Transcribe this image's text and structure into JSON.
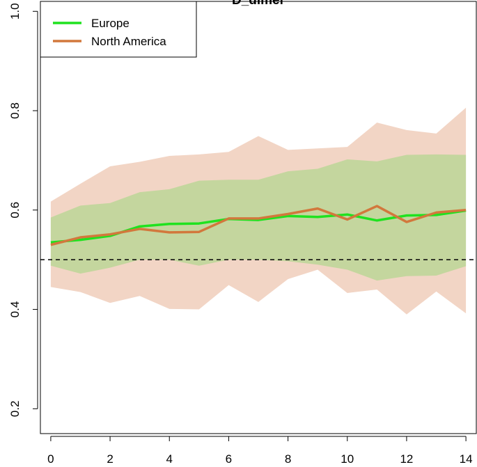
{
  "chart_data": {
    "type": "line",
    "title": "D_dimer",
    "xlabel": "",
    "ylabel": "",
    "xlim": [
      -0.35,
      14.35
    ],
    "ylim": [
      0.15,
      1.02
    ],
    "x_ticks": [
      0,
      2,
      4,
      6,
      8,
      10,
      12,
      14
    ],
    "y_ticks": [
      0.2,
      0.4,
      0.6,
      0.8,
      1.0
    ],
    "x_tick_labels": [
      "0",
      "2",
      "4",
      "6",
      "8",
      "10",
      "12",
      "14"
    ],
    "y_tick_labels": [
      "0.2",
      "0.4",
      "0.6",
      "0.8",
      "1.0"
    ],
    "reference_line": {
      "y": 0.5,
      "style": "dashed",
      "color": "#000000"
    },
    "x": [
      0,
      1,
      2,
      3,
      4,
      5,
      6,
      7,
      8,
      9,
      10,
      11,
      12,
      13,
      14
    ],
    "series": [
      {
        "name": "Europe",
        "color": "#1fe21f",
        "band_color": "#bcd696",
        "values": [
          0.535,
          0.54,
          0.548,
          0.567,
          0.572,
          0.573,
          0.582,
          0.58,
          0.588,
          0.586,
          0.591,
          0.579,
          0.589,
          0.59,
          0.599
        ],
        "lower": [
          0.488,
          0.472,
          0.484,
          0.5,
          0.5,
          0.488,
          0.5,
          0.5,
          0.497,
          0.49,
          0.48,
          0.458,
          0.467,
          0.468,
          0.487
        ],
        "upper": [
          0.585,
          0.609,
          0.614,
          0.636,
          0.642,
          0.659,
          0.661,
          0.661,
          0.678,
          0.683,
          0.702,
          0.698,
          0.711,
          0.712,
          0.711
        ]
      },
      {
        "name": "North America",
        "color": "#d2783c",
        "band_color": "#f2d5c5",
        "values": [
          0.53,
          0.545,
          0.551,
          0.562,
          0.555,
          0.556,
          0.583,
          0.583,
          0.592,
          0.603,
          0.581,
          0.608,
          0.576,
          0.595,
          0.6
        ],
        "lower": [
          0.445,
          0.435,
          0.413,
          0.427,
          0.401,
          0.4,
          0.449,
          0.415,
          0.461,
          0.48,
          0.433,
          0.44,
          0.39,
          0.436,
          0.392
        ],
        "upper": [
          0.617,
          0.653,
          0.688,
          0.697,
          0.709,
          0.712,
          0.717,
          0.749,
          0.721,
          0.724,
          0.727,
          0.776,
          0.761,
          0.754,
          0.806
        ]
      }
    ],
    "legend": {
      "placement": "top-left",
      "entries": [
        "Europe",
        "North America"
      ]
    },
    "grid": false
  }
}
